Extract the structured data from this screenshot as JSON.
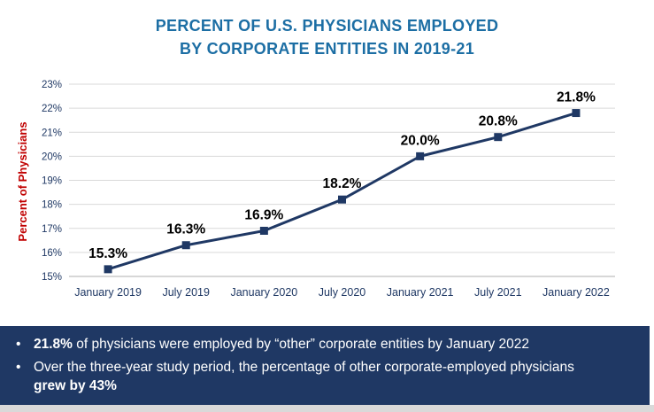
{
  "title": {
    "line1": "PERCENT OF U.S. PHYSICIANS EMPLOYED",
    "line2": "BY CORPORATE ENTITIES IN 2019-21"
  },
  "chart_data": {
    "type": "line",
    "title": "PERCENT OF U.S. PHYSICIANS EMPLOYED BY CORPORATE ENTITIES IN 2019-21",
    "categories": [
      "January 2019",
      "July 2019",
      "January 2020",
      "July 2020",
      "January 2021",
      "July 2021",
      "January 2022"
    ],
    "values": [
      15.3,
      16.3,
      16.9,
      18.2,
      20.0,
      20.8,
      21.8
    ],
    "data_labels": [
      "15.3%",
      "16.3%",
      "16.9%",
      "18.2%",
      "20.0%",
      "20.8%",
      "21.8%"
    ],
    "xlabel": "",
    "ylabel": "Percent of Physicians",
    "ylim": [
      15,
      23
    ],
    "ytick_step": 1,
    "ytick_labels": [
      "15%",
      "16%",
      "17%",
      "18%",
      "19%",
      "20%",
      "21%",
      "22%",
      "23%"
    ],
    "grid": true,
    "legend": "none",
    "marker": "square",
    "line_color": "#1F3864",
    "data_label_color": "#000000",
    "ylabel_color": "#C00000"
  },
  "footer": {
    "bullet_char": "•",
    "bullets": [
      {
        "segments": [
          {
            "text": "21.8%",
            "bold": true
          },
          {
            "text": " of physicians were employed by “other” corporate entities by January 2022",
            "bold": false
          }
        ]
      },
      {
        "segments": [
          {
            "text": "Over the three-year study period, the percentage of other corporate-employed physicians ",
            "bold": false
          },
          {
            "text": "grew by 43%",
            "bold": true
          }
        ]
      }
    ]
  },
  "colors": {
    "title": "#1C6EA4",
    "axis_text": "#1F3864",
    "gridline": "#D9D9D9",
    "axis_line": "#BFBFBF",
    "line": "#1F3864",
    "background": "#FFFFFF",
    "footer_bg": "#1F3864",
    "footer_text": "#FFFFFF",
    "bottom_strip": "#D9D9D9"
  }
}
